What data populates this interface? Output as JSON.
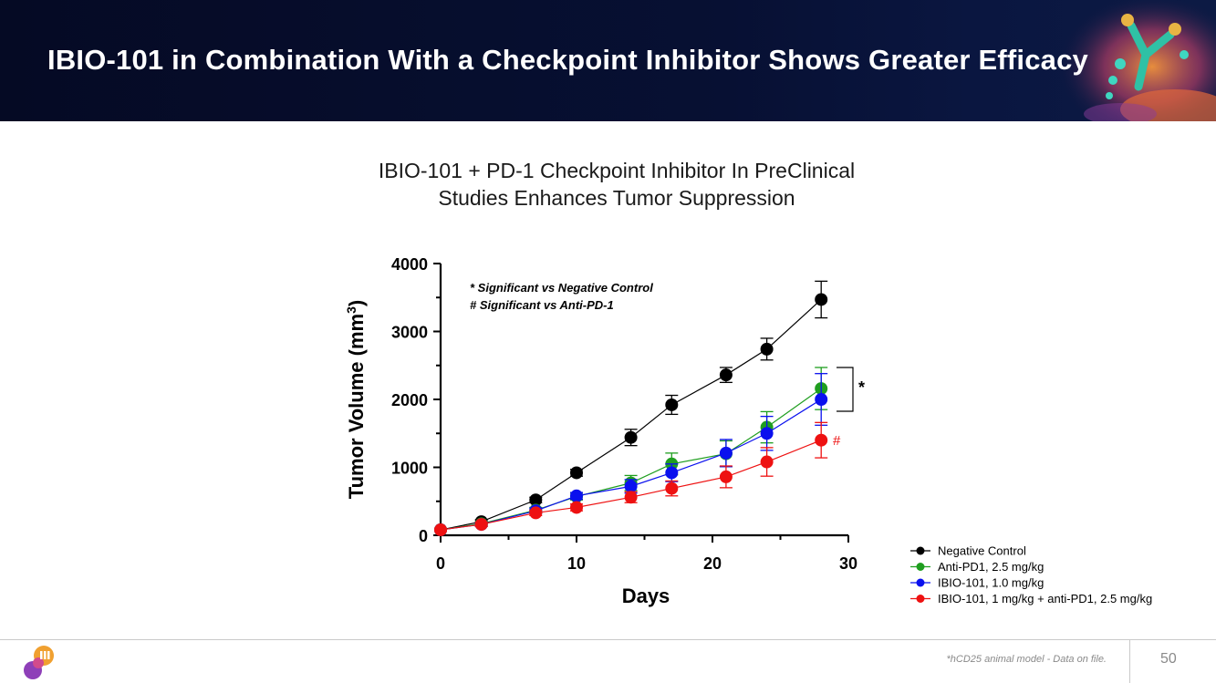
{
  "slide": {
    "title": "IBIO-101 in Combination With a Checkpoint Inhibitor Shows Greater Efficacy",
    "subtitle_line1": "IBIO-101 + PD-1 Checkpoint Inhibitor In PreClinical",
    "subtitle_line2": "Studies Enhances Tumor Suppression",
    "footnote": "*hCD25 animal model - Data on file.",
    "page_number": "50"
  },
  "colors": {
    "banner": "#071033",
    "negative_control": "#000000",
    "anti_pd1": "#1f9e1f",
    "ibio_101": "#0a10ee",
    "combination": "#ee1111"
  },
  "chart_data": {
    "type": "line",
    "xlabel": "Days",
    "ylabel": "Tumor Volume (mm",
    "ylabel_sup": "3",
    "ylabel_close": ")",
    "xlim": [
      0,
      30
    ],
    "ylim": [
      0,
      4000
    ],
    "x_ticks": [
      0,
      10,
      20,
      30
    ],
    "y_ticks": [
      0,
      1000,
      2000,
      3000,
      4000
    ],
    "annotation_star_note": "* Significant vs Negative Control",
    "annotation_hash_note": "# Significant vs Anti-PD-1",
    "bracket_marker": "*",
    "hash_marker": "#",
    "legend": {
      "position": "bottom-right",
      "entries": [
        "Negative Control",
        "Anti-PD1, 2.5 mg/kg",
        "IBIO-101, 1.0 mg/kg",
        "IBIO-101, 1 mg/kg + anti-PD1, 2.5 mg/kg"
      ]
    },
    "series": [
      {
        "name": "Negative Control",
        "color": "#000000",
        "x": [
          0,
          3,
          7,
          10,
          14,
          17,
          21,
          24,
          28
        ],
        "y": [
          80,
          200,
          520,
          920,
          1440,
          1920,
          2360,
          2740,
          3470
        ],
        "err": [
          20,
          30,
          40,
          50,
          120,
          140,
          110,
          160,
          270
        ]
      },
      {
        "name": "Anti-PD1, 2.5 mg/kg",
        "color": "#1f9e1f",
        "x": [
          0,
          3,
          7,
          10,
          14,
          17,
          21,
          24,
          28
        ],
        "y": [
          80,
          170,
          370,
          570,
          770,
          1050,
          1200,
          1590,
          2160
        ],
        "err": [
          20,
          30,
          40,
          50,
          110,
          160,
          190,
          230,
          310
        ]
      },
      {
        "name": "IBIO-101, 1.0 mg/kg",
        "color": "#0a10ee",
        "x": [
          0,
          3,
          7,
          10,
          14,
          17,
          21,
          24,
          28
        ],
        "y": [
          80,
          160,
          360,
          580,
          720,
          920,
          1210,
          1500,
          2000
        ],
        "err": [
          20,
          30,
          40,
          50,
          100,
          130,
          200,
          250,
          380
        ]
      },
      {
        "name": "IBIO-101, 1 mg/kg + anti-PD1, 2.5 mg/kg",
        "color": "#ee1111",
        "x": [
          0,
          3,
          7,
          10,
          14,
          17,
          21,
          24,
          28
        ],
        "y": [
          80,
          160,
          330,
          410,
          560,
          690,
          860,
          1080,
          1400
        ],
        "err": [
          20,
          30,
          40,
          50,
          80,
          110,
          160,
          210,
          260
        ]
      }
    ]
  }
}
